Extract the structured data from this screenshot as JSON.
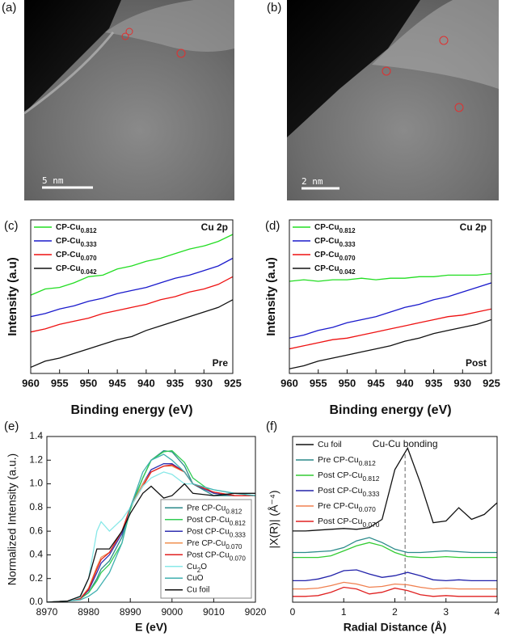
{
  "images": [
    {
      "label": "(a)",
      "scale_bar": "5 nm"
    },
    {
      "label": "(b)",
      "scale_bar": "2 nm"
    }
  ],
  "chart_data": [
    {
      "type": "line",
      "label": "(c)",
      "xlabel": "Binding energy (eV)",
      "ylabel": "Intensity (a.u)",
      "xlim": [
        960,
        925
      ],
      "xticks": [
        960,
        955,
        950,
        945,
        940,
        935,
        930,
        925
      ],
      "ylim": [
        0,
        10
      ],
      "legend": "upper left",
      "annotations": [
        {
          "text": "Cu 2p",
          "position": "upper right"
        },
        {
          "text": "Pre",
          "position": "lower right"
        }
      ],
      "x": [
        960,
        957.5,
        955,
        952.5,
        950,
        947.5,
        945,
        942.5,
        940,
        937.5,
        935,
        932.5,
        930,
        927.5,
        925
      ],
      "series": [
        {
          "name": "CP-Cu0.812",
          "color": "#22dd22",
          "values": [
            5.1,
            5.5,
            5.6,
            5.9,
            6.3,
            6.4,
            6.8,
            7.0,
            7.3,
            7.5,
            7.8,
            8.1,
            8.3,
            8.6,
            9.05
          ]
        },
        {
          "name": "CP-Cu0.333",
          "color": "#1a1acc",
          "values": [
            3.7,
            3.9,
            4.2,
            4.4,
            4.7,
            4.9,
            5.2,
            5.4,
            5.6,
            5.9,
            6.2,
            6.4,
            6.7,
            7.0,
            7.5
          ]
        },
        {
          "name": "CP-Cu0.070",
          "color": "#ee1111",
          "values": [
            2.7,
            2.9,
            3.2,
            3.4,
            3.6,
            3.9,
            4.1,
            4.3,
            4.5,
            4.8,
            5.0,
            5.3,
            5.5,
            5.8,
            6.3
          ]
        },
        {
          "name": "CP-Cu0.042",
          "color": "#111111",
          "values": [
            0.4,
            0.8,
            1.0,
            1.3,
            1.6,
            1.9,
            2.2,
            2.4,
            2.8,
            3.1,
            3.4,
            3.7,
            4.0,
            4.3,
            4.8
          ]
        }
      ]
    },
    {
      "type": "line",
      "label": "(d)",
      "xlabel": "Binding energy (eV)",
      "ylabel": "Intensity (a.u)",
      "xlim": [
        960,
        925
      ],
      "xticks": [
        960,
        955,
        950,
        945,
        940,
        935,
        930,
        925
      ],
      "ylim": [
        0,
        10
      ],
      "legend": "upper left",
      "annotations": [
        {
          "text": "Cu 2p",
          "position": "upper right"
        },
        {
          "text": "Post",
          "position": "lower right"
        }
      ],
      "x": [
        960,
        957.5,
        955,
        952.5,
        950,
        947.5,
        945,
        942.5,
        940,
        937.5,
        935,
        932.5,
        930,
        927.5,
        925
      ],
      "series": [
        {
          "name": "CP-Cu0.812",
          "color": "#22dd22",
          "values": [
            6.0,
            6.1,
            6.0,
            6.1,
            6.1,
            6.2,
            6.1,
            6.2,
            6.2,
            6.3,
            6.3,
            6.4,
            6.4,
            6.4,
            6.5
          ]
        },
        {
          "name": "CP-Cu0.333",
          "color": "#1a1acc",
          "values": [
            2.3,
            2.5,
            2.8,
            3.0,
            3.3,
            3.5,
            3.7,
            4.0,
            4.3,
            4.5,
            4.8,
            5.0,
            5.3,
            5.6,
            5.9
          ]
        },
        {
          "name": "CP-Cu0.070",
          "color": "#ee1111",
          "values": [
            1.6,
            1.8,
            2.0,
            2.2,
            2.3,
            2.5,
            2.7,
            2.9,
            3.1,
            3.3,
            3.5,
            3.7,
            3.8,
            4.0,
            4.2
          ]
        },
        {
          "name": "CP-Cu0.042",
          "color": "#111111",
          "values": [
            0.3,
            0.5,
            0.8,
            1.0,
            1.2,
            1.4,
            1.6,
            1.8,
            2.1,
            2.3,
            2.6,
            2.8,
            3.0,
            3.2,
            3.5
          ]
        }
      ]
    },
    {
      "type": "line",
      "label": "(e)",
      "xlabel": "E (eV)",
      "ylabel": "Normalized Intensity (a.u.)",
      "xlim": [
        8970,
        9020
      ],
      "xticks": [
        8970,
        8980,
        8990,
        9000,
        9010,
        9020
      ],
      "ylim": [
        0,
        1.4
      ],
      "yticks": [
        {
          "value": 0,
          "label": "0.0"
        },
        0.2,
        0.4,
        0.6,
        0.8,
        {
          "value": 1,
          "label": "1.0"
        },
        1.2,
        1.4
      ],
      "legend": "lower right",
      "x": [
        8970,
        8975,
        8978,
        8980,
        8982,
        8983,
        8985,
        8988,
        8990,
        8993,
        8995,
        8998,
        9000,
        9003,
        9005,
        9010,
        9015,
        9020
      ],
      "series": [
        {
          "name": "Pre CP-Cu0.812",
          "color": "#2a8a8a",
          "values": [
            0,
            0.01,
            0.03,
            0.08,
            0.2,
            0.28,
            0.35,
            0.55,
            0.8,
            1.05,
            1.2,
            1.28,
            1.27,
            1.15,
            1.0,
            0.9,
            0.9,
            0.9
          ]
        },
        {
          "name": "Post CP-Cu0.812",
          "color": "#33cc55",
          "values": [
            0,
            0.01,
            0.03,
            0.08,
            0.18,
            0.25,
            0.32,
            0.5,
            0.78,
            1.05,
            1.2,
            1.27,
            1.28,
            1.18,
            1.05,
            0.92,
            0.9,
            0.9
          ]
        },
        {
          "name": "Post CP-Cu0.333",
          "color": "#3030b0",
          "values": [
            0,
            0.01,
            0.03,
            0.1,
            0.25,
            0.33,
            0.4,
            0.58,
            0.8,
            1.0,
            1.12,
            1.17,
            1.17,
            1.1,
            1.0,
            0.92,
            0.9,
            0.9
          ]
        },
        {
          "name": "Pre CP-Cu0.070",
          "color": "#f09050",
          "values": [
            0,
            0.01,
            0.03,
            0.12,
            0.3,
            0.38,
            0.42,
            0.6,
            0.8,
            1.0,
            1.1,
            1.15,
            1.15,
            1.1,
            1.0,
            0.93,
            0.9,
            0.9
          ]
        },
        {
          "name": "Post CP-Cu0.070",
          "color": "#e02020",
          "values": [
            0,
            0.01,
            0.03,
            0.11,
            0.28,
            0.36,
            0.42,
            0.6,
            0.8,
            0.98,
            1.1,
            1.15,
            1.16,
            1.1,
            1.0,
            0.93,
            0.9,
            0.9
          ]
        },
        {
          "name": "Cu2O",
          "color": "#88e8e8",
          "values": [
            0,
            0.01,
            0.04,
            0.2,
            0.6,
            0.68,
            0.6,
            0.7,
            0.8,
            0.98,
            1.05,
            1.1,
            1.08,
            1.0,
            1.0,
            0.95,
            0.92,
            0.9
          ]
        },
        {
          "name": "CuO",
          "color": "#40b0b0",
          "values": [
            0,
            0.01,
            0.02,
            0.05,
            0.1,
            0.15,
            0.25,
            0.5,
            0.8,
            1.1,
            1.2,
            1.25,
            1.2,
            1.1,
            1.0,
            0.95,
            0.92,
            0.9
          ]
        },
        {
          "name": "Cu foil",
          "color": "#111111",
          "values": [
            0,
            0.01,
            0.05,
            0.2,
            0.45,
            0.45,
            0.45,
            0.6,
            0.75,
            0.92,
            0.98,
            0.88,
            0.9,
            1.0,
            0.92,
            0.9,
            0.92,
            0.92
          ]
        }
      ]
    },
    {
      "type": "line",
      "label": "(f)",
      "xlabel": "Radial Distance (Å)",
      "ylabel": "|X(R)| (Å⁻⁴)",
      "xlim": [
        0,
        4
      ],
      "xticks": [
        0,
        1,
        2,
        3,
        4
      ],
      "ylim": [
        0,
        10
      ],
      "legend": "upper left",
      "vline": 2.2,
      "annotations": [
        {
          "text": "Cu-Cu bonding",
          "position": "at line"
        }
      ],
      "x": [
        0,
        0.25,
        0.5,
        0.75,
        1,
        1.25,
        1.5,
        1.75,
        2,
        2.25,
        2.5,
        2.75,
        3,
        3.25,
        3.5,
        3.75,
        4
      ],
      "series": [
        {
          "name": "Cu foil",
          "color": "#111111",
          "values": [
            4.3,
            4.3,
            4.35,
            4.4,
            4.45,
            4.4,
            4.5,
            5.0,
            8.0,
            9.3,
            7.2,
            4.8,
            4.9,
            5.7,
            5.0,
            5.3,
            6.0
          ]
        },
        {
          "name": "Pre CP-Cu0.812",
          "color": "#2a8a8a",
          "values": [
            3.0,
            3.0,
            3.05,
            3.1,
            3.3,
            3.7,
            3.9,
            3.6,
            3.2,
            3.0,
            3.0,
            3.05,
            3.1,
            3.05,
            3.0,
            3.0,
            3.0
          ]
        },
        {
          "name": "Post CP-Cu0.812",
          "color": "#33cc33",
          "values": [
            2.7,
            2.7,
            2.7,
            2.8,
            3.1,
            3.4,
            3.6,
            3.4,
            3.0,
            2.75,
            2.7,
            2.7,
            2.75,
            2.7,
            2.7,
            2.7,
            2.7
          ]
        },
        {
          "name": "Post CP-Cu0.333",
          "color": "#2222aa",
          "values": [
            1.3,
            1.3,
            1.4,
            1.6,
            1.9,
            1.95,
            1.7,
            1.5,
            1.6,
            1.8,
            1.6,
            1.35,
            1.3,
            1.35,
            1.3,
            1.3,
            1.3
          ]
        },
        {
          "name": "Pre CP-Cu0.070",
          "color": "#f08050",
          "values": [
            0.8,
            0.8,
            0.85,
            1.0,
            1.2,
            1.1,
            0.9,
            0.95,
            1.1,
            1.05,
            0.9,
            0.8,
            0.85,
            0.8,
            0.8,
            0.8,
            0.8
          ]
        },
        {
          "name": "Post CP-Cu0.070",
          "color": "#e02020",
          "values": [
            0.35,
            0.35,
            0.4,
            0.6,
            0.9,
            0.8,
            0.5,
            0.6,
            0.85,
            0.7,
            0.45,
            0.35,
            0.4,
            0.35,
            0.35,
            0.35,
            0.35
          ]
        }
      ]
    }
  ]
}
